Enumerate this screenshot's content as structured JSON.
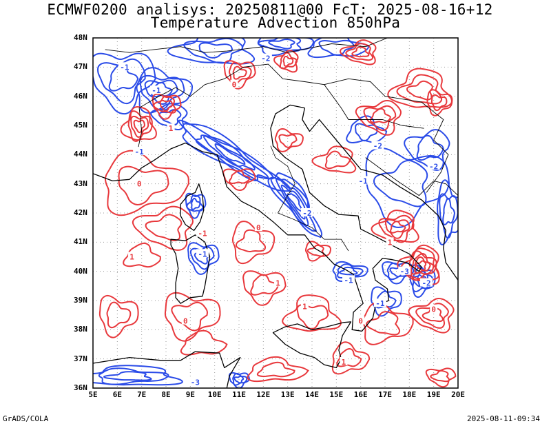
{
  "title": {
    "line1": "ECMWF0200 analisys: 20250811@00 FcT: 2025-08-16+12",
    "line2": "Temperature Advection 850hPa"
  },
  "map": {
    "lon_labels": [
      "5E",
      "6E",
      "7E",
      "8E",
      "9E",
      "10E",
      "11E",
      "12E",
      "13E",
      "14E",
      "15E",
      "16E",
      "17E",
      "18E",
      "19E",
      "20E"
    ],
    "lat_labels": [
      "48N",
      "47N",
      "46N",
      "45N",
      "44N",
      "43N",
      "42N",
      "41N",
      "40N",
      "39N",
      "38N",
      "37N",
      "36N"
    ],
    "lon_range": [
      5,
      20
    ],
    "lat_range": [
      36,
      48
    ],
    "colors": {
      "warm_advection": "#e8383c",
      "cold_advection": "#2a4be8",
      "coastline": "#000000",
      "grid": "#9a9a9a"
    },
    "contour_labels": {
      "positive": [
        "0",
        "1",
        "-1",
        "0",
        "1",
        "0",
        "1",
        "0",
        "1",
        "0",
        "1",
        "1",
        "0"
      ],
      "negative": [
        "-1",
        "-2",
        "-1",
        "-2",
        "-3",
        "-1",
        "-2",
        "-1",
        "-2",
        "-1",
        "-1",
        "-3",
        "-1",
        "-2"
      ]
    }
  },
  "footer": {
    "left": "GrADS/COLA",
    "right": "2025-08-11-09:34"
  }
}
